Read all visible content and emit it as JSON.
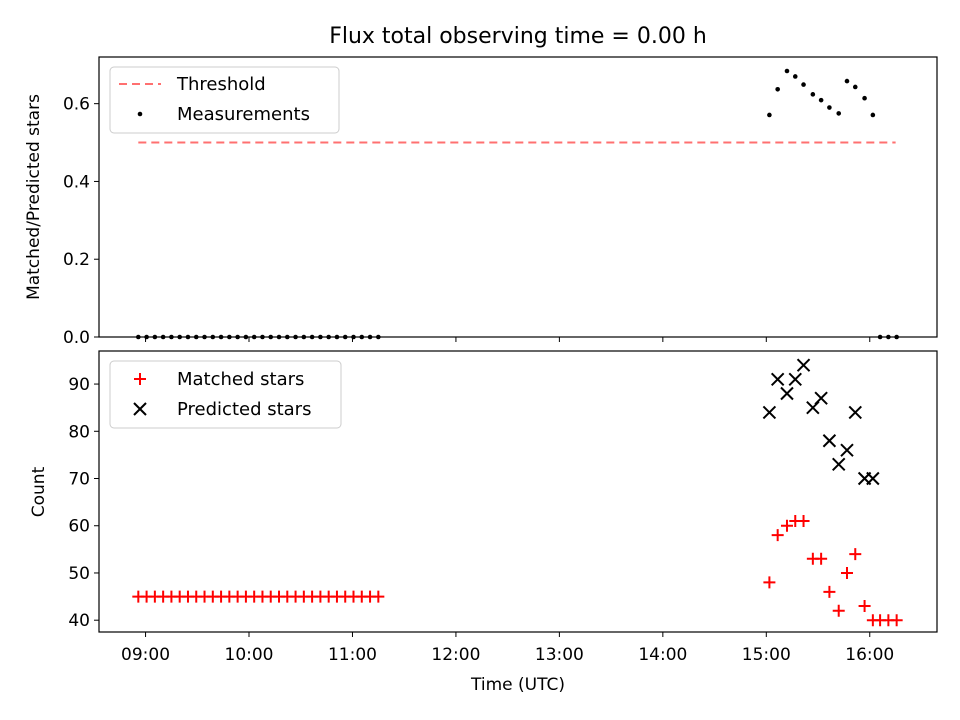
{
  "title": "Flux total observing time = 0.00 h",
  "x_tick_labels": [
    "09:00",
    "10:00",
    "11:00",
    "12:00",
    "13:00",
    "14:00",
    "15:00",
    "16:00"
  ],
  "xlabel": "Time (UTC)",
  "chart_data": [
    {
      "type": "scatter",
      "ylabel": "Matched/Predicted stars",
      "xlim": [
        8.55,
        16.65
      ],
      "ylim": [
        0,
        0.72
      ],
      "y_ticks": [
        0.0,
        0.2,
        0.4,
        0.6
      ],
      "y_tick_labels": [
        "0.0",
        "0.2",
        "0.4",
        "0.6"
      ],
      "legend_position": "top-left",
      "threshold": {
        "name": "Threshold",
        "value": 0.5,
        "x_range": [
          8.93,
          16.25
        ],
        "color": "#ff7070"
      },
      "series": [
        {
          "name": "Measurements",
          "marker": "dot",
          "color": "#000000",
          "x": [
            8.93,
            9.01,
            9.09,
            9.17,
            9.25,
            9.33,
            9.41,
            9.49,
            9.57,
            9.65,
            9.73,
            9.81,
            9.89,
            9.97,
            10.05,
            10.13,
            10.21,
            10.29,
            10.37,
            10.45,
            10.53,
            10.61,
            10.69,
            10.77,
            10.85,
            10.93,
            11.01,
            11.09,
            11.17,
            11.25,
            15.03,
            15.11,
            15.2,
            15.28,
            15.36,
            15.45,
            15.53,
            15.61,
            15.7,
            15.78,
            15.86,
            15.95,
            16.03,
            16.1,
            16.18,
            16.26
          ],
          "y": [
            0,
            0,
            0,
            0,
            0,
            0,
            0,
            0,
            0,
            0,
            0,
            0,
            0,
            0,
            0,
            0,
            0,
            0,
            0,
            0,
            0,
            0,
            0,
            0,
            0,
            0,
            0,
            0,
            0,
            0,
            0.571,
            0.637,
            0.684,
            0.67,
            0.649,
            0.624,
            0.609,
            0.59,
            0.575,
            0.658,
            0.643,
            0.614,
            0.571,
            0,
            0,
            0
          ]
        }
      ]
    },
    {
      "type": "scatter",
      "ylabel": "Count",
      "xlim": [
        8.55,
        16.65
      ],
      "ylim": [
        37.5,
        97
      ],
      "y_ticks": [
        40,
        50,
        60,
        70,
        80,
        90
      ],
      "y_tick_labels": [
        "40",
        "50",
        "60",
        "70",
        "80",
        "90"
      ],
      "legend_position": "top-left",
      "series": [
        {
          "name": "Matched stars",
          "marker": "plus",
          "color": "#ff0000",
          "x": [
            8.93,
            9.01,
            9.09,
            9.17,
            9.25,
            9.33,
            9.41,
            9.49,
            9.57,
            9.65,
            9.73,
            9.81,
            9.89,
            9.97,
            10.05,
            10.13,
            10.21,
            10.29,
            10.37,
            10.45,
            10.53,
            10.61,
            10.69,
            10.77,
            10.85,
            10.93,
            11.01,
            11.09,
            11.17,
            11.25,
            15.03,
            15.11,
            15.2,
            15.28,
            15.36,
            15.45,
            15.53,
            15.61,
            15.7,
            15.78,
            15.86,
            15.95,
            16.03,
            16.1,
            16.18,
            16.26
          ],
          "y": [
            45,
            45,
            45,
            45,
            45,
            45,
            45,
            45,
            45,
            45,
            45,
            45,
            45,
            45,
            45,
            45,
            45,
            45,
            45,
            45,
            45,
            45,
            45,
            45,
            45,
            45,
            45,
            45,
            45,
            45,
            48,
            58,
            60,
            61,
            61,
            53,
            53,
            46,
            42,
            50,
            54,
            43,
            40,
            40,
            40,
            40
          ]
        },
        {
          "name": "Predicted stars",
          "marker": "x",
          "color": "#000000",
          "x": [
            15.03,
            15.11,
            15.2,
            15.28,
            15.36,
            15.45,
            15.53,
            15.61,
            15.7,
            15.78,
            15.86,
            15.95,
            16.03
          ],
          "y": [
            84,
            91,
            88,
            91,
            94,
            85,
            87,
            78,
            73,
            76,
            84,
            70,
            70
          ]
        }
      ]
    }
  ]
}
